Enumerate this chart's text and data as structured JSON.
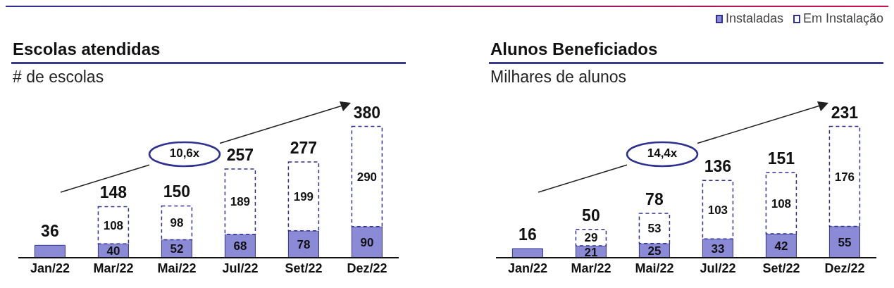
{
  "chart_data": [
    {
      "type": "bar",
      "stacked": true,
      "title": "Escolas atendidas",
      "subtitle": "# de escolas",
      "categories": [
        "Jan/22",
        "Mar/22",
        "Mai/22",
        "Jul/22",
        "Set/22",
        "Dez/22"
      ],
      "series": [
        {
          "color": "#8a8ad6",
          "values": [
            36,
            40,
            52,
            68,
            78,
            90
          ],
          "value_labels": [
            null,
            "40",
            "52",
            "68",
            "78",
            "90"
          ]
        },
        {
          "color": "#2e3192",
          "line_style": "dashed",
          "values": [
            null,
            108,
            98,
            189,
            199,
            290
          ],
          "value_labels": [
            null,
            "108",
            "98",
            "189",
            "199",
            "290"
          ]
        }
      ],
      "totals": [
        "36",
        "148",
        "150",
        "257",
        "277",
        "380"
      ],
      "annotations": [
        "10,6x"
      ],
      "legend": false
    },
    {
      "type": "bar",
      "stacked": true,
      "title": "Alunos Beneficiados",
      "subtitle": "Milhares de alunos",
      "categories": [
        "Jan/22",
        "Mar/22",
        "Mai/22",
        "Jul/22",
        "Set/22",
        "Dez/22"
      ],
      "series": [
        {
          "name": "Instaladas",
          "color": "#8a8ad6",
          "values": [
            16,
            21,
            25,
            33,
            42,
            55
          ],
          "value_labels": [
            null,
            "21",
            "25",
            "33",
            "42",
            "55"
          ]
        },
        {
          "name": "Em Instalação",
          "color": "#2e3192",
          "line_style": "dashed",
          "values": [
            null,
            29,
            53,
            103,
            108,
            176
          ],
          "value_labels": [
            null,
            "29",
            "53",
            "103",
            "108",
            "176"
          ]
        }
      ],
      "totals": [
        "16",
        "50",
        "78",
        "136",
        "151",
        "231"
      ],
      "annotations": [
        "14,4x"
      ],
      "legend": "top right"
    }
  ]
}
